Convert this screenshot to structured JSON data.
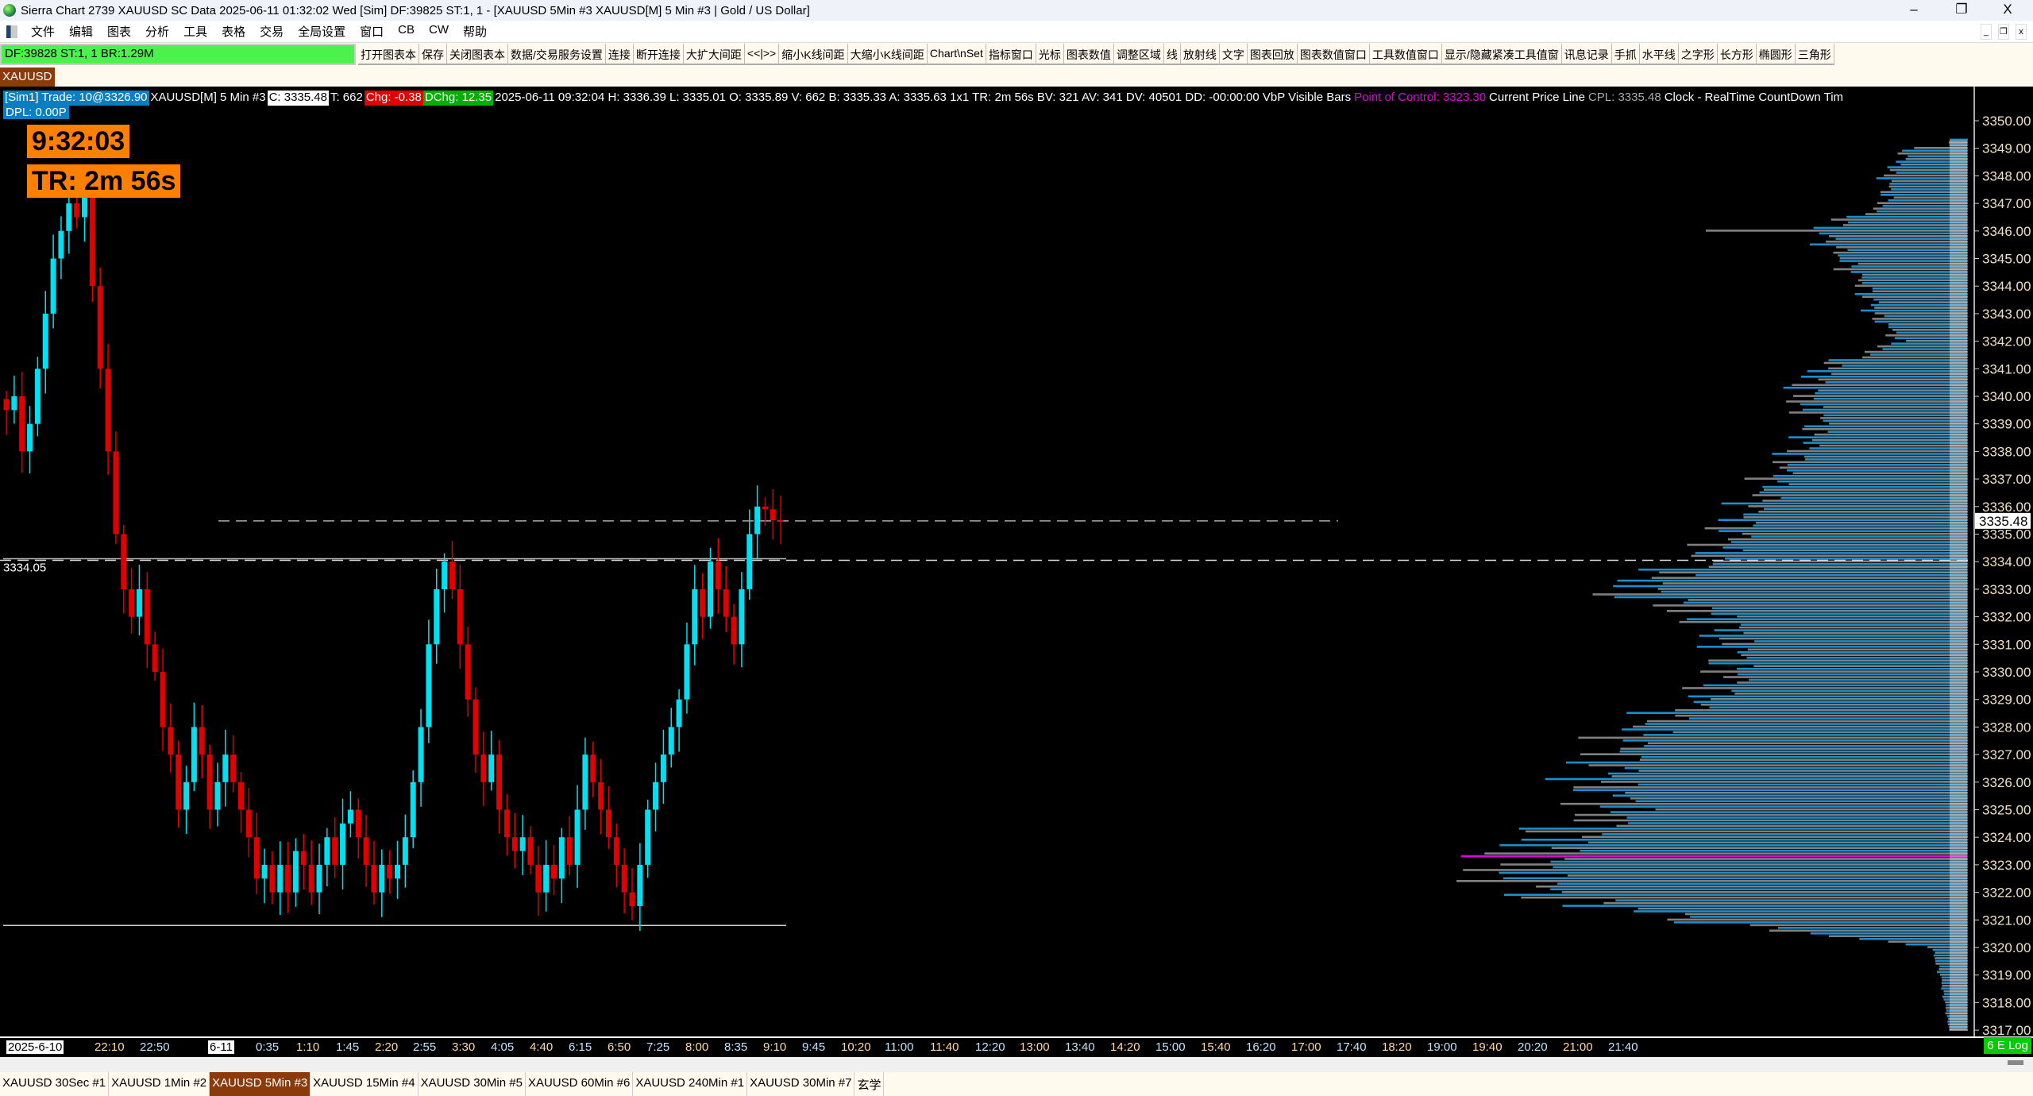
{
  "window": {
    "title": "Sierra Chart 2739 XAUUSD SC Data 2025-06-11  01:32:02 Wed [Sim] DF:39825  ST:1, 1 - [XAUUSD 5Min #3 XAUUSD[M]  5 Min  #3 | Gold / US Dollar]",
    "minimize": "–",
    "restore": "❐",
    "close": "X"
  },
  "menu": [
    "文件",
    "编辑",
    "图表",
    "分析",
    "工具",
    "表格",
    "交易",
    "全局设置",
    "窗口",
    "CB",
    "CW",
    "帮助"
  ],
  "mdi": {
    "min": "_",
    "restore": "❐",
    "close": "x"
  },
  "toolbar": {
    "status": "DF:39828  ST:1, 1  BR:1.29M",
    "buttons": [
      "打开图表本",
      "保存",
      "关闭图表本",
      "数据/交易服务设置",
      "连接",
      "断开连接",
      "大扩大间距",
      "<<|>>",
      "缩小K线间距",
      "大缩小K线间距",
      "Chart\\nSet",
      "指标窗口",
      "光标",
      "图表数值",
      "调整区域",
      "线",
      "放射线",
      "文字",
      "图表回放",
      "图表数值窗口",
      "工具数值窗口",
      "显示/隐藏紧凑工具值窗",
      "讯息记录",
      "手抓",
      "水平线",
      "之字形",
      "长方形",
      "椭圆形",
      "三角形"
    ]
  },
  "symbol_tab": "XAUUSD",
  "info": {
    "sim": "[Sim1]  Trade: 10@3326.90",
    "symbol": "XAUUSD[M]  5 Min  #3",
    "close": "C: 3335.48",
    "ticks": "T: 662",
    "chg": "Chg: -0.38",
    "dchg": "DChg: 12.35",
    "rest": "2025-06-11 09:32:04 H: 3336.39 L: 3335.01 O: 3335.89 V: 662 B: 3335.33 A: 3335.63 1x1 TR: 2m 56s BV: 321 AV: 341 DV: 40501 DD: -00:00:00 VbP Visible Bars",
    "poc": "Point of Control: 3323.30",
    "cpl_name": "Current Price Line",
    "cpl": "CPL: 3335.48",
    "tail": "Clock - RealTime  CountDown Tim",
    "dpl": "DPL: 0.00P"
  },
  "clock": "9:32:03",
  "countdown": "TR: 2m 56s",
  "colors": {
    "up": "#00e0f0",
    "down": "#e00000",
    "profile_a": "#1a8fd0",
    "profile_b": "#808080",
    "poc": "#e000e0"
  },
  "price_axis": {
    "labels": [
      "3350.00",
      "3349.00",
      "3348.00",
      "3347.00",
      "3346.00",
      "3345.00",
      "3344.00",
      "3343.00",
      "3342.00",
      "3341.00",
      "3340.00",
      "3339.00",
      "3338.00",
      "3337.00",
      "3336.00",
      "3335.00",
      "3334.00",
      "3333.00",
      "3332.00",
      "3331.00",
      "3330.00",
      "3329.00",
      "3328.00",
      "3327.00",
      "3326.00",
      "3325.00",
      "3324.00",
      "3323.00",
      "3322.00",
      "3321.00",
      "3320.00",
      "3319.00",
      "3318.00",
      "3317.00"
    ],
    "current": "3335.48",
    "line_label": "3334.05",
    "scale": "6 E Log"
  },
  "time_axis": [
    "2025-6-10",
    "22:10",
    "22:50",
    "6-11",
    "0:35",
    "1:10",
    "1:45",
    "2:20",
    "2:55",
    "3:30",
    "4:05",
    "4:40",
    "6:15",
    "6:50",
    "7:25",
    "8:00",
    "8:35",
    "9:10",
    "9:45",
    "10:20",
    "11:00",
    "11:40",
    "12:20",
    "13:00",
    "13:40",
    "14:20",
    "15:00",
    "15:40",
    "16:20",
    "17:00",
    "17:40",
    "18:20",
    "19:00",
    "19:40",
    "20:20",
    "21:00",
    "21:40"
  ],
  "chart": {
    "closes": [
      3339.5,
      3340,
      3338,
      3339,
      3341,
      3343,
      3345,
      3346,
      3347,
      3346.5,
      3347.5,
      3344,
      3341,
      3338,
      3335,
      3333,
      3332,
      3333,
      3331,
      3330,
      3328,
      3327,
      3325,
      3326,
      3328,
      3327,
      3325,
      3326,
      3327,
      3326,
      3325,
      3324,
      3322.5,
      3323,
      3322,
      3323,
      3322,
      3323.5,
      3323,
      3322,
      3323,
      3324,
      3323,
      3324.5,
      3325,
      3324,
      3323,
      3322,
      3323,
      3322.5,
      3323,
      3324,
      3326,
      3328,
      3331,
      3333,
      3334,
      3333,
      3331,
      3329,
      3327,
      3326,
      3327,
      3325,
      3324,
      3323.5,
      3324,
      3323,
      3322,
      3323,
      3322.5,
      3324,
      3323,
      3325,
      3327,
      3326,
      3325,
      3324,
      3323,
      3322,
      3321.5,
      3323,
      3325,
      3326,
      3327,
      3328,
      3329,
      3331,
      3333,
      3332,
      3334,
      3333,
      3332,
      3331,
      3333,
      3335,
      3336,
      3335.9,
      3335.5,
      3335.48
    ],
    "profile": {
      "prices": [
        3349,
        3348,
        3347,
        3346,
        3345,
        3344,
        3343,
        3342,
        3341,
        3340,
        3339,
        3338,
        3337,
        3336,
        3335,
        3334,
        3333,
        3332,
        3331,
        3330,
        3329,
        3328,
        3327,
        3326,
        3325,
        3324,
        3323,
        3322,
        3321,
        3320,
        3319,
        3318,
        3317
      ],
      "relative_volume": [
        0.1,
        0.15,
        0.15,
        0.3,
        0.25,
        0.2,
        0.18,
        0.12,
        0.3,
        0.35,
        0.3,
        0.35,
        0.4,
        0.45,
        0.5,
        0.55,
        0.75,
        0.55,
        0.5,
        0.5,
        0.55,
        0.7,
        0.75,
        0.8,
        0.75,
        0.9,
        1.0,
        0.95,
        0.6,
        0.05,
        0.03,
        0.02,
        0.01
      ]
    },
    "poc": 3323.3,
    "current_price": 3335.48,
    "lines": [
      3334.05,
      3320.8
    ]
  },
  "tabs": [
    "XAUUSD 30Sec #1",
    "XAUUSD 1Min #2",
    "XAUUSD 5Min #3",
    "XAUUSD 15Min #4",
    "XAUUSD 30Min #5",
    "XAUUSD 60Min #6",
    "XAUUSD 240Min #1",
    "XAUUSD 30Min #7",
    "玄学"
  ],
  "active_tab": 2
}
